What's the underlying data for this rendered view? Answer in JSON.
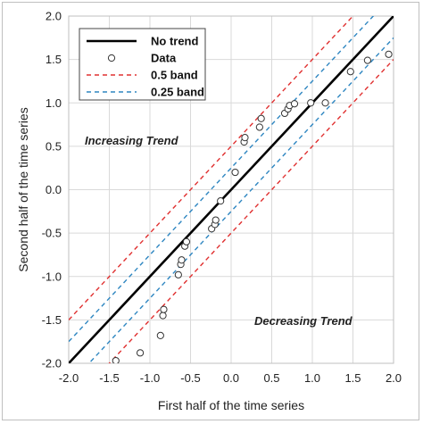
{
  "chart_data": {
    "type": "scatter",
    "xlabel": "First half of the time series",
    "ylabel": "Second half of the time series",
    "xlim": [
      -2.0,
      2.0
    ],
    "ylim": [
      -2.0,
      2.0
    ],
    "xticks": [
      "-2.0",
      "-1.5",
      "-1.0",
      "-0.5",
      "0.0",
      "0.5",
      "1.0",
      "1.5",
      "2.0"
    ],
    "yticks": [
      "-2.0",
      "-1.5",
      "-1.0",
      "-0.5",
      "0.0",
      "0.5",
      "1.0",
      "1.5",
      "2.0"
    ],
    "grid": true,
    "legend_position": "top-left",
    "annotations": [
      {
        "text": "Increasing Trend"
      },
      {
        "text": "Decreasing Trend"
      }
    ],
    "series": [
      {
        "name": "No trend",
        "kind": "line",
        "slope": 1,
        "offset": 0,
        "color": "#000000",
        "style": "solid"
      },
      {
        "name": "Data",
        "kind": "points",
        "color": "#333333",
        "points": [
          [
            -1.42,
            -1.97
          ],
          [
            -1.12,
            -1.88
          ],
          [
            -0.87,
            -1.68
          ],
          [
            -0.84,
            -1.45
          ],
          [
            -0.83,
            -1.38
          ],
          [
            -0.65,
            -0.98
          ],
          [
            -0.62,
            -0.86
          ],
          [
            -0.61,
            -0.81
          ],
          [
            -0.57,
            -0.65
          ],
          [
            -0.55,
            -0.6
          ],
          [
            -0.24,
            -0.45
          ],
          [
            -0.2,
            -0.4
          ],
          [
            -0.19,
            -0.35
          ],
          [
            -0.13,
            -0.13
          ],
          [
            0.05,
            0.2
          ],
          [
            0.16,
            0.55
          ],
          [
            0.17,
            0.6
          ],
          [
            0.35,
            0.72
          ],
          [
            0.37,
            0.82
          ],
          [
            0.66,
            0.88
          ],
          [
            0.7,
            0.93
          ],
          [
            0.72,
            0.97
          ],
          [
            0.78,
            0.99
          ],
          [
            0.98,
            1.0
          ],
          [
            1.16,
            1.0
          ],
          [
            1.47,
            1.36
          ],
          [
            1.68,
            1.49
          ],
          [
            1.94,
            1.56
          ]
        ]
      },
      {
        "name": "0.5 band",
        "kind": "band",
        "offset": 0.5,
        "color": "#e03030",
        "style": "dashed"
      },
      {
        "name": "0.25 band",
        "kind": "band",
        "offset": 0.25,
        "color": "#2e86c1",
        "style": "dashed"
      }
    ]
  }
}
